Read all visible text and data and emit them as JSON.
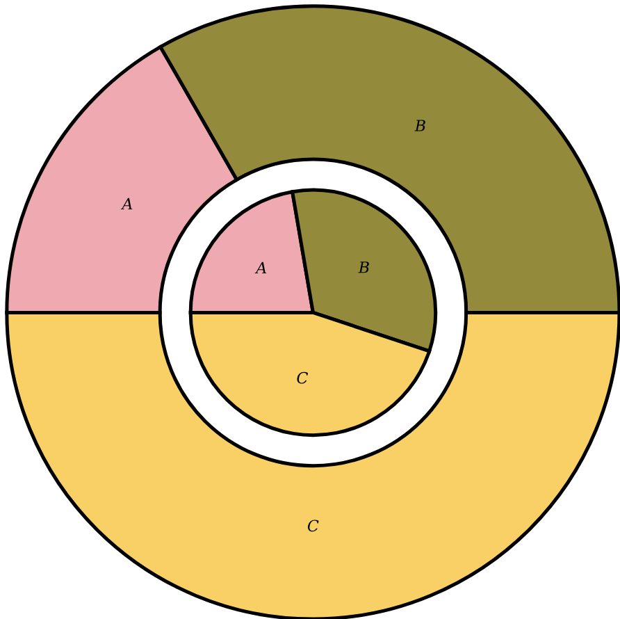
{
  "chart_data": {
    "type": "donut",
    "categories": [
      "A",
      "B",
      "C"
    ],
    "colors": [
      "#eea9b1",
      "#938a3b",
      "#f8d065"
    ],
    "series": [
      {
        "type": "donut",
        "values": [
          16.7,
          33.3,
          50
        ]
      },
      {
        "type": "pie",
        "values": [
          22.3,
          32.8,
          44.9
        ]
      }
    ]
  }
}
